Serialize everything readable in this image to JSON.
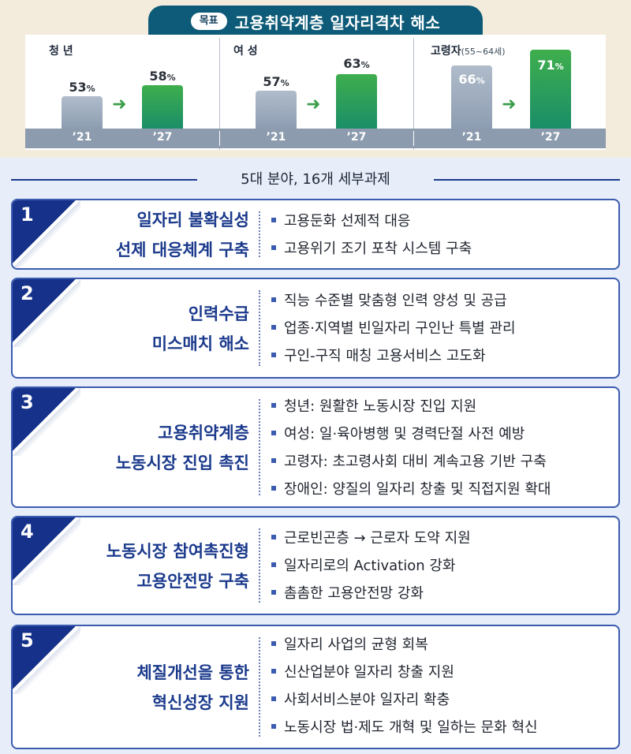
{
  "goal": {
    "badge": "목표",
    "title": "고용취약계층 일자리격차 해소"
  },
  "groups": [
    {
      "label": "청 년",
      "sub": "",
      "before": {
        "value": "53",
        "unit": "%",
        "year": "’21"
      },
      "after": {
        "value": "58",
        "unit": "%",
        "year": "’27"
      }
    },
    {
      "label": "여 성",
      "sub": "",
      "before": {
        "value": "57",
        "unit": "%",
        "year": "’21"
      },
      "after": {
        "value": "63",
        "unit": "%",
        "year": "’27"
      }
    },
    {
      "label": "고령자",
      "sub": "(55~64세)",
      "before": {
        "value": "66",
        "unit": "%",
        "year": "’21"
      },
      "after": {
        "value": "71",
        "unit": "%",
        "year": "’27"
      }
    }
  ],
  "headline": "5대 분야, 16개 세부과제",
  "tasks": [
    {
      "num": "1",
      "title": [
        "일자리 불확실성",
        "선제 대응체계 구축"
      ],
      "items": [
        "고용둔화 선제적 대응",
        "고용위기 조기 포착 시스템 구축"
      ]
    },
    {
      "num": "2",
      "title": [
        "인력수급",
        "미스매치 해소"
      ],
      "items": [
        "직능 수준별 맞춤형 인력 양성 및 공급",
        "업종·지역별 빈일자리 구인난 특별 관리",
        "구인-구직 매칭 고용서비스 고도화"
      ]
    },
    {
      "num": "3",
      "title": [
        "고용취약계층",
        "노동시장 진입 촉진"
      ],
      "items": [
        "청년: 원활한 노동시장 진입 지원",
        "여성: 일·육아병행 및 경력단절 사전 예방",
        "고령자: 초고령사회 대비 계속고용 기반 구축",
        "장애인: 양질의 일자리 창출 및 직접지원 확대"
      ]
    },
    {
      "num": "4",
      "title": [
        "노동시장 참여촉진형",
        "고용안전망 구축"
      ],
      "items": [
        "근로빈곤층 → 근로자 도약 지원",
        "일자리로의 Activation 강화",
        "촘촘한 고용안전망 강화"
      ]
    },
    {
      "num": "5",
      "title": [
        "체질개선을 통한",
        "혁신성장 지원"
      ],
      "items": [
        "일자리 사업의 균형 회복",
        "신산업분야 일자리 창출 지원",
        "사회서비스분야 일자리 확충",
        "노동시장 법·제도 개혁 및 일하는 문화 혁신"
      ]
    }
  ]
}
